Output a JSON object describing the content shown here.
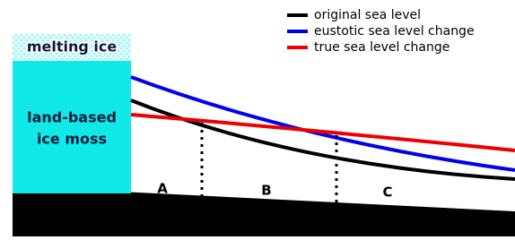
{
  "legend": [
    {
      "label": "original sea level",
      "color": "#000000"
    },
    {
      "label": "eustotic sea level change",
      "color": "#0000ee"
    },
    {
      "label": "true sea level change",
      "color": "#ee0000"
    }
  ],
  "ice": {
    "top_label": "melting ice",
    "body_label": [
      "land-based",
      "ice moss"
    ]
  },
  "zones": [
    "A",
    "B",
    "C"
  ]
}
